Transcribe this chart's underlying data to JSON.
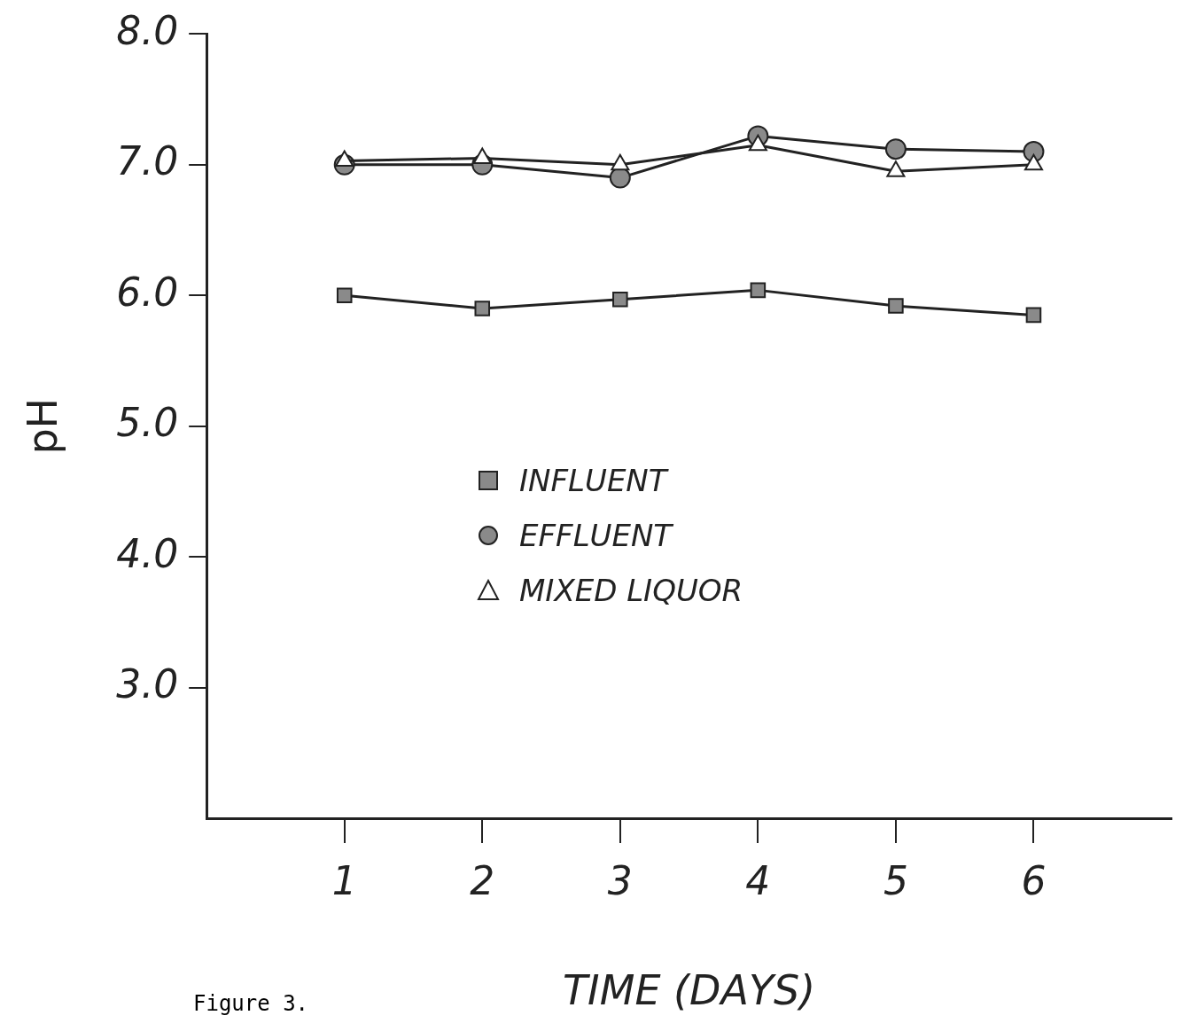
{
  "chart_data": {
    "type": "line",
    "xlabel": "TIME (DAYS)",
    "ylabel": "pH",
    "annotations": [
      "Figure 3."
    ],
    "x": [
      1,
      2,
      3,
      4,
      5,
      6
    ],
    "xlim": [
      0,
      7
    ],
    "xticks": [
      1,
      2,
      3,
      4,
      5,
      6
    ],
    "ylim": [
      2,
      8
    ],
    "yticks": [
      {
        "value": 3,
        "label": "3.0"
      },
      {
        "value": 4,
        "label": "4.0"
      },
      {
        "value": 5,
        "label": "5.0"
      },
      {
        "value": 6,
        "label": "6.0"
      },
      {
        "value": 7,
        "label": "7.0"
      },
      {
        "value": 8,
        "label": "8.0"
      }
    ],
    "series": [
      {
        "name": "INFLUENT",
        "color": "#8a8a8a",
        "marker": "square",
        "values": [
          6.0,
          5.9,
          5.97,
          6.04,
          5.92,
          5.85
        ]
      },
      {
        "name": "EFFLUENT",
        "color": "#8a8a8a",
        "marker": "circle",
        "values": [
          7.0,
          7.0,
          6.9,
          7.22,
          7.12,
          7.1
        ]
      },
      {
        "name": "MIXED LIQUOR",
        "color": "#ffffff",
        "marker": "triangle",
        "values": [
          7.03,
          7.05,
          7.0,
          7.15,
          6.95,
          7.0
        ]
      }
    ],
    "legend": "center",
    "grid": false
  }
}
